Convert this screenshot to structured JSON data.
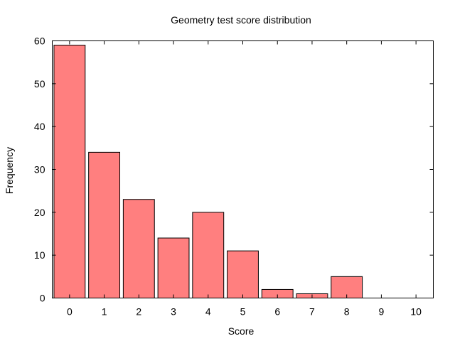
{
  "chart_data": {
    "type": "bar",
    "title": "Geometry test score distribution",
    "xlabel": "Score",
    "ylabel": "Frequency",
    "categories": [
      "0",
      "1",
      "2",
      "3",
      "4",
      "5",
      "6",
      "7",
      "8",
      "9",
      "10"
    ],
    "values": [
      59,
      34,
      23,
      14,
      20,
      11,
      2,
      1,
      5,
      0,
      0
    ],
    "ylim": [
      0,
      60
    ],
    "yticks": [
      0,
      10,
      20,
      30,
      40,
      50,
      60
    ],
    "bar_color": "#ff7f7f",
    "grid": false,
    "legend": "none"
  }
}
